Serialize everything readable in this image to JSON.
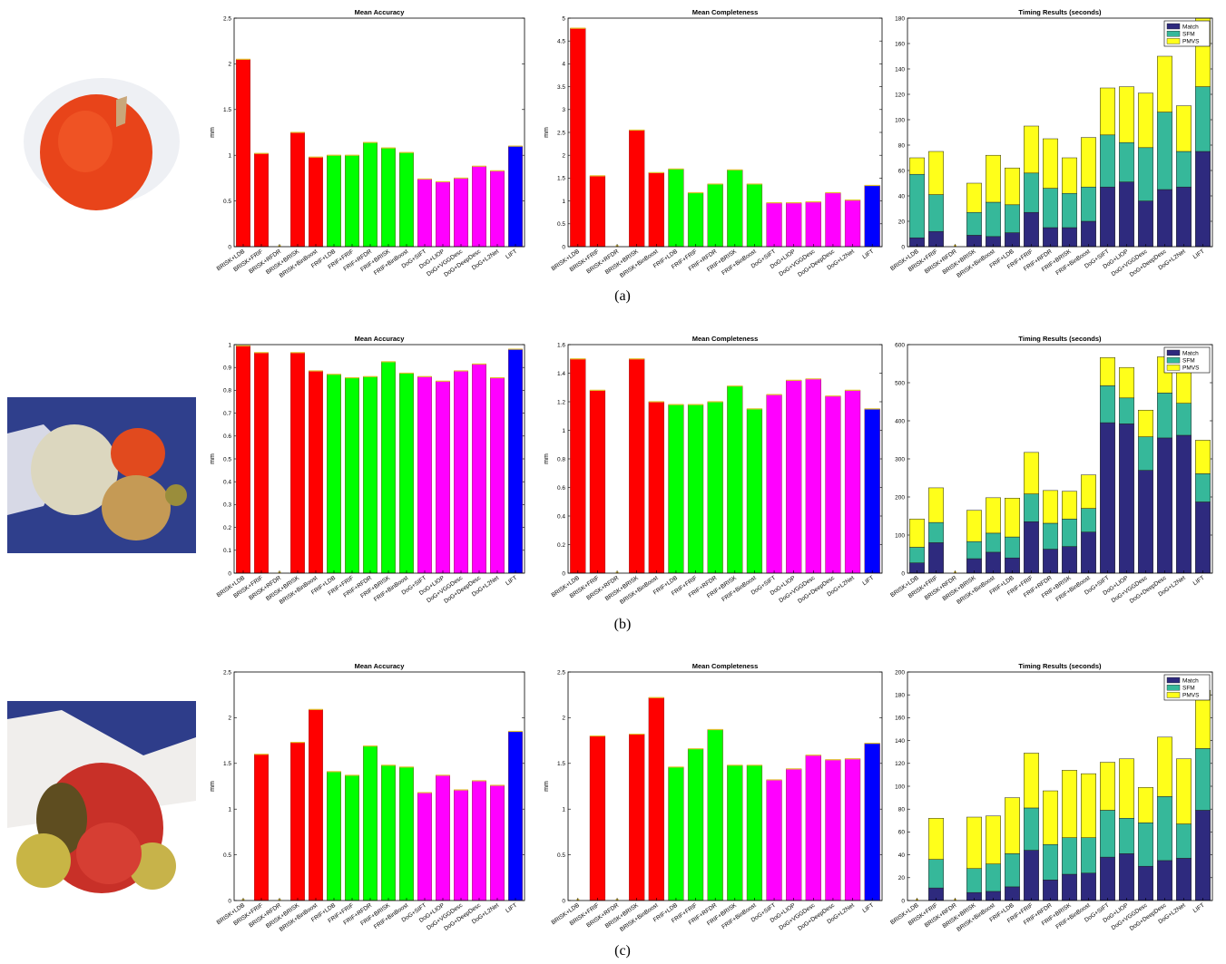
{
  "figure": {
    "captions": [
      "(a)",
      "(b)",
      "(c)"
    ]
  },
  "colors": {
    "red": "#ff0000",
    "green": "#00ff00",
    "magenta": "#ff00ff",
    "blue": "#0000ff",
    "match": "#2e2a7e",
    "sfm": "#36b89a",
    "pmvs": "#ffff1a"
  },
  "chart_data": [
    {
      "row": "a",
      "type": "bar",
      "title": "Mean Accuracy",
      "ylabel": "mm",
      "xlabel": "",
      "ylim": [
        0,
        2.5
      ],
      "yticks": [
        0,
        0.5,
        1,
        1.5,
        2,
        2.5
      ],
      "grid": false,
      "categories": [
        "BRISK+LDB",
        "BRISK+FRIF",
        "BRISK+RFDR",
        "BRISK+BRISK",
        "BRISK+BinBoost",
        "FRIF+LDB",
        "FRIF+FRIF",
        "FRIF+RFDR",
        "FRIF+BRISK",
        "FRIF+BinBoost",
        "DoG+SIFT",
        "DoG+LIOP",
        "DoG+VGGDesc",
        "DoG+DeepDesc",
        "DoG+L2Net",
        "LIFT"
      ],
      "bar_colors": [
        "red",
        "red",
        "red",
        "red",
        "red",
        "green",
        "green",
        "green",
        "green",
        "green",
        "magenta",
        "magenta",
        "magenta",
        "magenta",
        "magenta",
        "blue"
      ],
      "values": [
        2.05,
        1.02,
        0,
        1.25,
        0.98,
        1.0,
        1.0,
        1.14,
        1.08,
        1.03,
        0.74,
        0.71,
        0.75,
        0.88,
        0.83,
        1.1
      ]
    },
    {
      "row": "a",
      "type": "bar",
      "title": "Mean Completeness",
      "ylabel": "mm",
      "xlabel": "",
      "ylim": [
        0,
        5
      ],
      "yticks": [
        0,
        0.5,
        1,
        1.5,
        2,
        2.5,
        3,
        3.5,
        4,
        4.5,
        5
      ],
      "grid": false,
      "categories": [
        "BRISK+LDB",
        "BRISK+FRIF",
        "BRISK+RFDR",
        "BRISK+BRISK",
        "BRISK+BinBoost",
        "FRIF+LDB",
        "FRIF+FRIF",
        "FRIF+RFDR",
        "FRIF+BRISK",
        "FRIF+BinBoost",
        "DoG+SIFT",
        "DoG+LIOP",
        "DoG+VGGDesc",
        "DoG+DeepDesc",
        "DoG+L2Net",
        "LIFT"
      ],
      "bar_colors": [
        "red",
        "red",
        "red",
        "red",
        "red",
        "green",
        "green",
        "green",
        "green",
        "green",
        "magenta",
        "magenta",
        "magenta",
        "magenta",
        "magenta",
        "blue"
      ],
      "values": [
        4.78,
        1.55,
        0,
        2.55,
        1.62,
        1.7,
        1.18,
        1.37,
        1.68,
        1.37,
        0.96,
        0.96,
        0.98,
        1.18,
        1.02,
        1.34
      ]
    },
    {
      "row": "a",
      "type": "stacked-bar",
      "title": "Timing Results (seconds)",
      "ylabel": "",
      "xlabel": "",
      "ylim": [
        0,
        180
      ],
      "yticks": [
        0,
        20,
        40,
        60,
        80,
        100,
        120,
        140,
        160,
        180
      ],
      "grid": false,
      "legend": "top-right",
      "categories": [
        "BRISK+LDB",
        "BRISK+FRIF",
        "BRISK+RFDR",
        "BRISK+BRISK",
        "BRISK+BinBoost",
        "FRIF+LDB",
        "FRIF+FRIF",
        "FRIF+RFDR",
        "FRIF+BRISK",
        "FRIF+BinBoost",
        "DoG+SIFT",
        "DoG+LIOP",
        "DoG+VGGDesc",
        "DoG+DeepDesc",
        "DoG+L2Net",
        "LIFT"
      ],
      "series": [
        {
          "name": "Match",
          "color": "match",
          "values": [
            7,
            12,
            0,
            9,
            8,
            11,
            27,
            15,
            15,
            20,
            47,
            51,
            36,
            45,
            47,
            75
          ]
        },
        {
          "name": "SFM",
          "color": "sfm",
          "values": [
            50,
            29,
            0,
            18,
            27,
            22,
            31,
            31,
            27,
            27,
            41,
            31,
            42,
            61,
            28,
            51
          ]
        },
        {
          "name": "PMVS",
          "color": "pmvs",
          "values": [
            13,
            34,
            0,
            23,
            37,
            29,
            37,
            39,
            28,
            39,
            37,
            44,
            43,
            44,
            36,
            54
          ]
        }
      ]
    },
    {
      "row": "b",
      "type": "bar",
      "title": "Mean Accuracy",
      "ylabel": "mm",
      "xlabel": "",
      "ylim": [
        0,
        1
      ],
      "yticks": [
        0,
        0.1,
        0.2,
        0.3,
        0.4,
        0.5,
        0.6,
        0.7,
        0.8,
        0.9,
        1
      ],
      "grid": false,
      "categories": [
        "BRISK+LDB",
        "BRISK+FRIF",
        "BRISK+RFDR",
        "BRISK+BRISK",
        "BRISK+BinBoost",
        "FRIF+LDB",
        "FRIF+FRIF",
        "FRIF+RFDR",
        "FRIF+BRISK",
        "FRIF+BinBoost",
        "DoG+SIFT",
        "DoG+LIOP",
        "DoG+VGGDesc",
        "DoG+DeepDesc",
        "DoG+L2Net",
        "LIFT"
      ],
      "bar_colors": [
        "red",
        "red",
        "red",
        "red",
        "red",
        "green",
        "green",
        "green",
        "green",
        "green",
        "magenta",
        "magenta",
        "magenta",
        "magenta",
        "magenta",
        "blue"
      ],
      "values": [
        0.995,
        0.965,
        0,
        0.965,
        0.885,
        0.87,
        0.855,
        0.86,
        0.925,
        0.875,
        0.86,
        0.84,
        0.885,
        0.915,
        0.855,
        0.98
      ]
    },
    {
      "row": "b",
      "type": "bar",
      "title": "Mean Completeness",
      "ylabel": "mm",
      "xlabel": "",
      "ylim": [
        0,
        1.6
      ],
      "yticks": [
        0,
        0.2,
        0.4,
        0.6,
        0.8,
        1,
        1.2,
        1.4,
        1.6
      ],
      "grid": false,
      "categories": [
        "BRISK+LDB",
        "BRISK+FRIF",
        "BRISK+RFDR",
        "BRISK+BRISK",
        "BRISK+BinBoost",
        "FRIF+LDB",
        "FRIF+FRIF",
        "FRIF+RFDR",
        "FRIF+BRISK",
        "FRIF+BinBoost",
        "DoG+SIFT",
        "DoG+LIOP",
        "DoG+VGGDesc",
        "DoG+DeepDesc",
        "DoG+L2Net",
        "LIFT"
      ],
      "bar_colors": [
        "red",
        "red",
        "red",
        "red",
        "red",
        "green",
        "green",
        "green",
        "green",
        "green",
        "magenta",
        "magenta",
        "magenta",
        "magenta",
        "magenta",
        "blue"
      ],
      "values": [
        1.5,
        1.28,
        0,
        1.5,
        1.2,
        1.18,
        1.18,
        1.2,
        1.31,
        1.15,
        1.25,
        1.35,
        1.36,
        1.24,
        1.28,
        1.15
      ]
    },
    {
      "row": "b",
      "type": "stacked-bar",
      "title": "Timing Results (seconds)",
      "ylabel": "",
      "xlabel": "",
      "ylim": [
        0,
        600
      ],
      "yticks": [
        0,
        100,
        200,
        300,
        400,
        500,
        600
      ],
      "grid": false,
      "legend": "top-right",
      "categories": [
        "BRISK+LDB",
        "BRISK+FRIF",
        "BRISK+RFDR",
        "BRISK+BRISK",
        "BRISK+BinBoost",
        "FRIF+LDB",
        "FRIF+FRIF",
        "FRIF+RFDR",
        "FRIF+BRISK",
        "FRIF+BinBoost",
        "DoG+SIFT",
        "DoG+LIOP",
        "DoG+VGGDesc",
        "DoG+DeepDesc",
        "DoG+L2Net",
        "LIFT"
      ],
      "series": [
        {
          "name": "Match",
          "color": "match",
          "values": [
            27,
            80,
            0,
            38,
            55,
            40,
            135,
            63,
            70,
            108,
            395,
            392,
            270,
            355,
            362,
            187
          ]
        },
        {
          "name": "SFM",
          "color": "sfm",
          "values": [
            41,
            53,
            0,
            45,
            50,
            55,
            73,
            68,
            72,
            62,
            97,
            68,
            88,
            118,
            84,
            74
          ]
        },
        {
          "name": "PMVS",
          "color": "pmvs",
          "values": [
            74,
            91,
            0,
            82,
            93,
            102,
            109,
            86,
            73,
            88,
            74,
            80,
            70,
            95,
            122,
            88
          ]
        }
      ]
    },
    {
      "row": "c",
      "type": "bar",
      "title": "Mean Accuracy",
      "ylabel": "mm",
      "xlabel": "",
      "ylim": [
        0,
        2.5
      ],
      "yticks": [
        0,
        0.5,
        1,
        1.5,
        2,
        2.5
      ],
      "grid": false,
      "categories": [
        "BRISK+LDB",
        "BRISK+FRIF",
        "BRISK+RFDR",
        "BRISK+BRISK",
        "BRISK+BinBoost",
        "FRIF+LDB",
        "FRIF+FRIF",
        "FRIF+RFDR",
        "FRIF+BRISK",
        "FRIF+BinBoost",
        "DoG+SIFT",
        "DoG+LIOP",
        "DoG+VGGDesc",
        "DoG+DeepDesc",
        "DoG+L2Net",
        "LIFT"
      ],
      "bar_colors": [
        "red",
        "red",
        "red",
        "red",
        "red",
        "green",
        "green",
        "green",
        "green",
        "green",
        "magenta",
        "magenta",
        "magenta",
        "magenta",
        "magenta",
        "blue"
      ],
      "values": [
        0,
        1.6,
        0,
        1.73,
        2.09,
        1.41,
        1.37,
        1.69,
        1.48,
        1.46,
        1.18,
        1.37,
        1.21,
        1.31,
        1.26,
        1.85
      ]
    },
    {
      "row": "c",
      "type": "bar",
      "title": "Mean Completeness",
      "ylabel": "mm",
      "xlabel": "",
      "ylim": [
        0,
        2.5
      ],
      "yticks": [
        0,
        0.5,
        1,
        1.5,
        2,
        2.5
      ],
      "grid": false,
      "categories": [
        "BRISK+LDB",
        "BRISK+FRIF",
        "BRISK+RFDR",
        "BRISK+BRISK",
        "BRISK+BinBoost",
        "FRIF+LDB",
        "FRIF+FRIF",
        "FRIF+RFDR",
        "FRIF+BRISK",
        "FRIF+BinBoost",
        "DoG+SIFT",
        "DoG+LIOP",
        "DoG+VGGDesc",
        "DoG+DeepDesc",
        "DoG+L2Net",
        "LIFT"
      ],
      "bar_colors": [
        "red",
        "red",
        "red",
        "red",
        "red",
        "green",
        "green",
        "green",
        "green",
        "green",
        "magenta",
        "magenta",
        "magenta",
        "magenta",
        "magenta",
        "blue"
      ],
      "values": [
        0,
        1.8,
        0,
        1.82,
        2.22,
        1.46,
        1.66,
        1.87,
        1.48,
        1.48,
        1.32,
        1.44,
        1.59,
        1.54,
        1.55,
        1.72
      ]
    },
    {
      "row": "c",
      "type": "stacked-bar",
      "title": "Timing Results (seconds)",
      "ylabel": "",
      "xlabel": "",
      "ylim": [
        0,
        200
      ],
      "yticks": [
        0,
        20,
        40,
        60,
        80,
        100,
        120,
        140,
        160,
        180,
        200
      ],
      "grid": false,
      "legend": "top-right",
      "categories": [
        "BRISK+LDB",
        "BRISK+FRIF",
        "BRISK+RFDR",
        "BRISK+BRISK",
        "BRISK+BinBoost",
        "FRIF+LDB",
        "FRIF+FRIF",
        "FRIF+RFDR",
        "FRIF+BRISK",
        "FRIF+BinBoost",
        "DoG+SIFT",
        "DoG+LIOP",
        "DoG+VGGDesc",
        "DoG+DeepDesc",
        "DoG+L2Net",
        "LIFT"
      ],
      "series": [
        {
          "name": "Match",
          "color": "match",
          "values": [
            0,
            11,
            0,
            7,
            8,
            12,
            44,
            18,
            23,
            24,
            38,
            41,
            30,
            35,
            37,
            79
          ]
        },
        {
          "name": "SFM",
          "color": "sfm",
          "values": [
            0,
            25,
            0,
            21,
            24,
            29,
            37,
            31,
            32,
            31,
            41,
            31,
            38,
            56,
            30,
            54
          ]
        },
        {
          "name": "PMVS",
          "color": "pmvs",
          "values": [
            0,
            36,
            0,
            45,
            42,
            49,
            48,
            47,
            59,
            56,
            42,
            52,
            31,
            52,
            57,
            51
          ]
        }
      ]
    }
  ]
}
